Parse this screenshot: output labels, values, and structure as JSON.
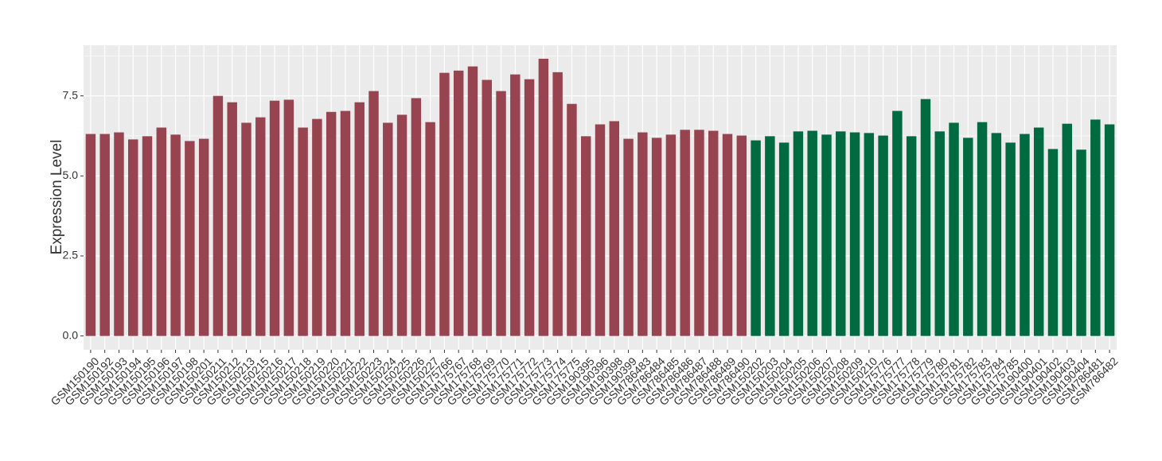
{
  "chart_data": {
    "type": "bar",
    "y_label": "Expression Level",
    "categories": [
      "GSM150190",
      "GSM150192",
      "GSM150193",
      "GSM150194",
      "GSM150195",
      "GSM150196",
      "GSM150197",
      "GSM150198",
      "GSM150201",
      "GSM150211",
      "GSM150212",
      "GSM150213",
      "GSM150215",
      "GSM150216",
      "GSM150217",
      "GSM150218",
      "GSM150219",
      "GSM150220",
      "GSM150221",
      "GSM150222",
      "GSM150223",
      "GSM150224",
      "GSM150225",
      "GSM150226",
      "GSM150227",
      "GSM175766",
      "GSM175767",
      "GSM175768",
      "GSM175769",
      "GSM175770",
      "GSM175771",
      "GSM175772",
      "GSM175773",
      "GSM175774",
      "GSM175775",
      "GSM190395",
      "GSM190396",
      "GSM190398",
      "GSM190399",
      "GSM786483",
      "GSM786484",
      "GSM786485",
      "GSM786486",
      "GSM786487",
      "GSM786488",
      "GSM786489",
      "GSM786490",
      "GSM150202",
      "GSM150203",
      "GSM150204",
      "GSM150205",
      "GSM150206",
      "GSM150207",
      "GSM150208",
      "GSM150209",
      "GSM150210",
      "GSM175776",
      "GSM175777",
      "GSM175778",
      "GSM175779",
      "GSM175780",
      "GSM175781",
      "GSM175782",
      "GSM175783",
      "GSM175784",
      "GSM175785",
      "GSM190400",
      "GSM190401",
      "GSM190402",
      "GSM190403",
      "GSM190404",
      "GSM786481",
      "GSM786482"
    ],
    "values": [
      6.31,
      6.31,
      6.36,
      6.14,
      6.24,
      6.51,
      6.29,
      6.09,
      6.16,
      7.5,
      7.3,
      6.66,
      6.83,
      7.35,
      7.38,
      6.51,
      6.78,
      7.0,
      7.03,
      7.3,
      7.65,
      6.66,
      6.91,
      7.43,
      6.68,
      8.22,
      8.29,
      8.42,
      8.0,
      7.65,
      8.17,
      8.02,
      8.66,
      8.24,
      7.25,
      6.24,
      6.61,
      6.71,
      6.16,
      6.36,
      6.19,
      6.29,
      6.44,
      6.44,
      6.41,
      6.31,
      6.26,
      6.11,
      6.24,
      6.04,
      6.39,
      6.41,
      6.29,
      6.39,
      6.36,
      6.34,
      6.26,
      7.03,
      6.24,
      7.4,
      6.39,
      6.66,
      6.19,
      6.68,
      6.34,
      6.04,
      6.31,
      6.51,
      5.84,
      6.63,
      5.82,
      6.76,
      6.61
    ],
    "colors": [
      "#984450",
      "#984450",
      "#984450",
      "#984450",
      "#984450",
      "#984450",
      "#984450",
      "#984450",
      "#984450",
      "#984450",
      "#984450",
      "#984450",
      "#984450",
      "#984450",
      "#984450",
      "#984450",
      "#984450",
      "#984450",
      "#984450",
      "#984450",
      "#984450",
      "#984450",
      "#984450",
      "#984450",
      "#984450",
      "#984450",
      "#984450",
      "#984450",
      "#984450",
      "#984450",
      "#984450",
      "#984450",
      "#984450",
      "#984450",
      "#984450",
      "#984450",
      "#984450",
      "#984450",
      "#984450",
      "#984450",
      "#984450",
      "#984450",
      "#984450",
      "#984450",
      "#984450",
      "#984450",
      "#984450",
      "#006a40",
      "#006a40",
      "#006a40",
      "#006a40",
      "#006a40",
      "#006a40",
      "#006a40",
      "#006a40",
      "#006a40",
      "#006a40",
      "#006a40",
      "#006a40",
      "#006a40",
      "#006a40",
      "#006a40",
      "#006a40",
      "#006a40",
      "#006a40",
      "#006a40",
      "#006a40",
      "#006a40",
      "#006a40",
      "#006a40",
      "#006a40",
      "#006a40",
      "#006a40"
    ],
    "ylim": [
      -0.43,
      9.08
    ],
    "yticks": [
      {
        "value": 0,
        "label": "0.0"
      },
      {
        "value": 2.5,
        "label": "2.5"
      },
      {
        "value": 5,
        "label": "5.0"
      },
      {
        "value": 7.5,
        "label": "7.5"
      }
    ],
    "grid": true
  }
}
